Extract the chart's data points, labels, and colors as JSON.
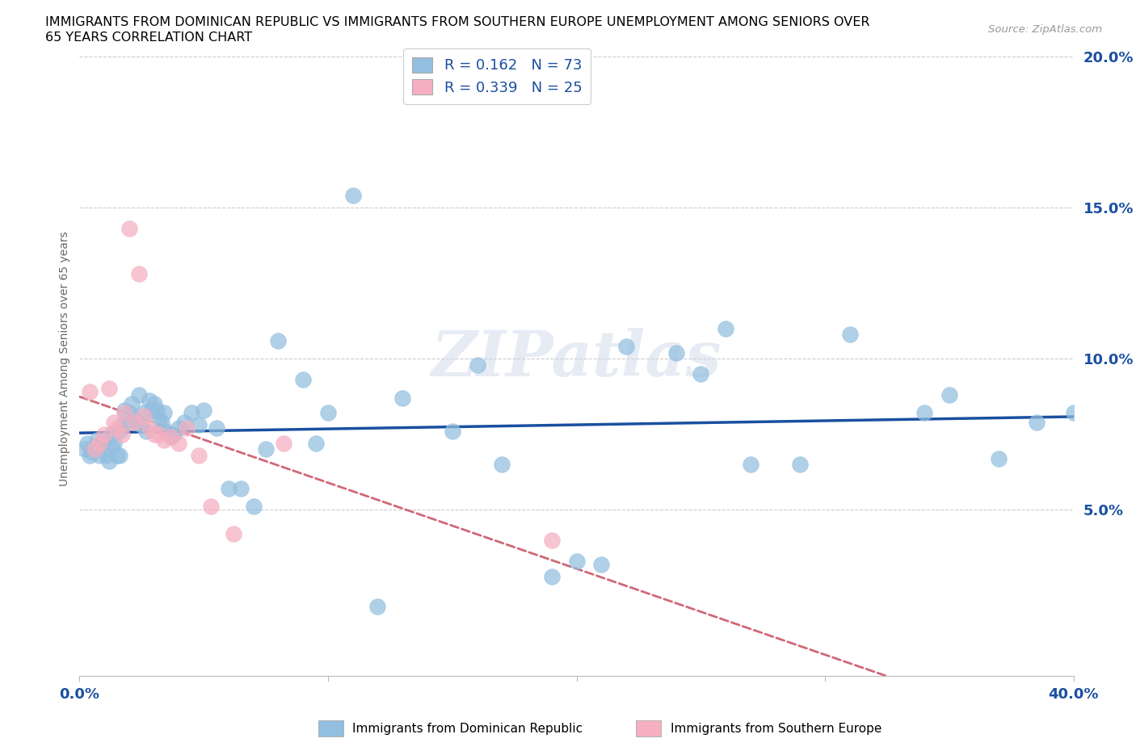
{
  "title_line1": "IMMIGRANTS FROM DOMINICAN REPUBLIC VS IMMIGRANTS FROM SOUTHERN EUROPE UNEMPLOYMENT AMONG SENIORS OVER",
  "title_line2": "65 YEARS CORRELATION CHART",
  "source": "Source: ZipAtlas.com",
  "ylabel": "Unemployment Among Seniors over 65 years",
  "legend_blue_label": "Immigrants from Dominican Republic",
  "legend_pink_label": "Immigrants from Southern Europe",
  "R_blue": 0.162,
  "N_blue": 73,
  "R_pink": 0.339,
  "N_pink": 25,
  "blue_color": "#92bfdf",
  "pink_color": "#f5afc0",
  "blue_line_color": "#1a4fa0",
  "pink_line_color": "#d06878",
  "watermark": "ZIPatlas",
  "xmin": 0.0,
  "xmax": 0.4,
  "ymin": -0.005,
  "ymax": 0.205,
  "yticks": [
    0.05,
    0.1,
    0.15,
    0.2
  ],
  "ytick_labels": [
    "5.0%",
    "10.0%",
    "15.0%",
    "20.0%"
  ],
  "blue_x": [
    0.002,
    0.003,
    0.004,
    0.005,
    0.006,
    0.007,
    0.008,
    0.009,
    0.01,
    0.011,
    0.012,
    0.013,
    0.013,
    0.014,
    0.015,
    0.016,
    0.016,
    0.017,
    0.018,
    0.019,
    0.02,
    0.021,
    0.022,
    0.023,
    0.024,
    0.025,
    0.026,
    0.027,
    0.028,
    0.029,
    0.03,
    0.031,
    0.032,
    0.033,
    0.034,
    0.035,
    0.037,
    0.038,
    0.04,
    0.042,
    0.045,
    0.048,
    0.05,
    0.055,
    0.06,
    0.065,
    0.07,
    0.075,
    0.08,
    0.09,
    0.095,
    0.1,
    0.11,
    0.12,
    0.13,
    0.15,
    0.16,
    0.17,
    0.19,
    0.2,
    0.21,
    0.22,
    0.24,
    0.25,
    0.26,
    0.27,
    0.29,
    0.31,
    0.34,
    0.35,
    0.37,
    0.385,
    0.4
  ],
  "blue_y": [
    0.07,
    0.072,
    0.068,
    0.069,
    0.071,
    0.073,
    0.068,
    0.072,
    0.073,
    0.068,
    0.066,
    0.071,
    0.075,
    0.072,
    0.068,
    0.068,
    0.076,
    0.078,
    0.083,
    0.079,
    0.082,
    0.085,
    0.08,
    0.079,
    0.088,
    0.078,
    0.082,
    0.076,
    0.086,
    0.083,
    0.085,
    0.083,
    0.08,
    0.079,
    0.082,
    0.076,
    0.074,
    0.075,
    0.077,
    0.079,
    0.082,
    0.078,
    0.083,
    0.077,
    0.057,
    0.057,
    0.051,
    0.07,
    0.106,
    0.093,
    0.072,
    0.082,
    0.154,
    0.018,
    0.087,
    0.076,
    0.098,
    0.065,
    0.028,
    0.033,
    0.032,
    0.104,
    0.102,
    0.095,
    0.11,
    0.065,
    0.065,
    0.108,
    0.082,
    0.088,
    0.067,
    0.079,
    0.082
  ],
  "pink_x": [
    0.004,
    0.006,
    0.008,
    0.01,
    0.012,
    0.014,
    0.015,
    0.017,
    0.018,
    0.02,
    0.022,
    0.024,
    0.026,
    0.028,
    0.03,
    0.032,
    0.034,
    0.037,
    0.04,
    0.043,
    0.048,
    0.053,
    0.062,
    0.082,
    0.19
  ],
  "pink_y": [
    0.089,
    0.07,
    0.072,
    0.075,
    0.09,
    0.079,
    0.077,
    0.075,
    0.082,
    0.143,
    0.079,
    0.128,
    0.081,
    0.077,
    0.075,
    0.075,
    0.073,
    0.074,
    0.072,
    0.077,
    0.068,
    0.051,
    0.042,
    0.072,
    0.04
  ]
}
